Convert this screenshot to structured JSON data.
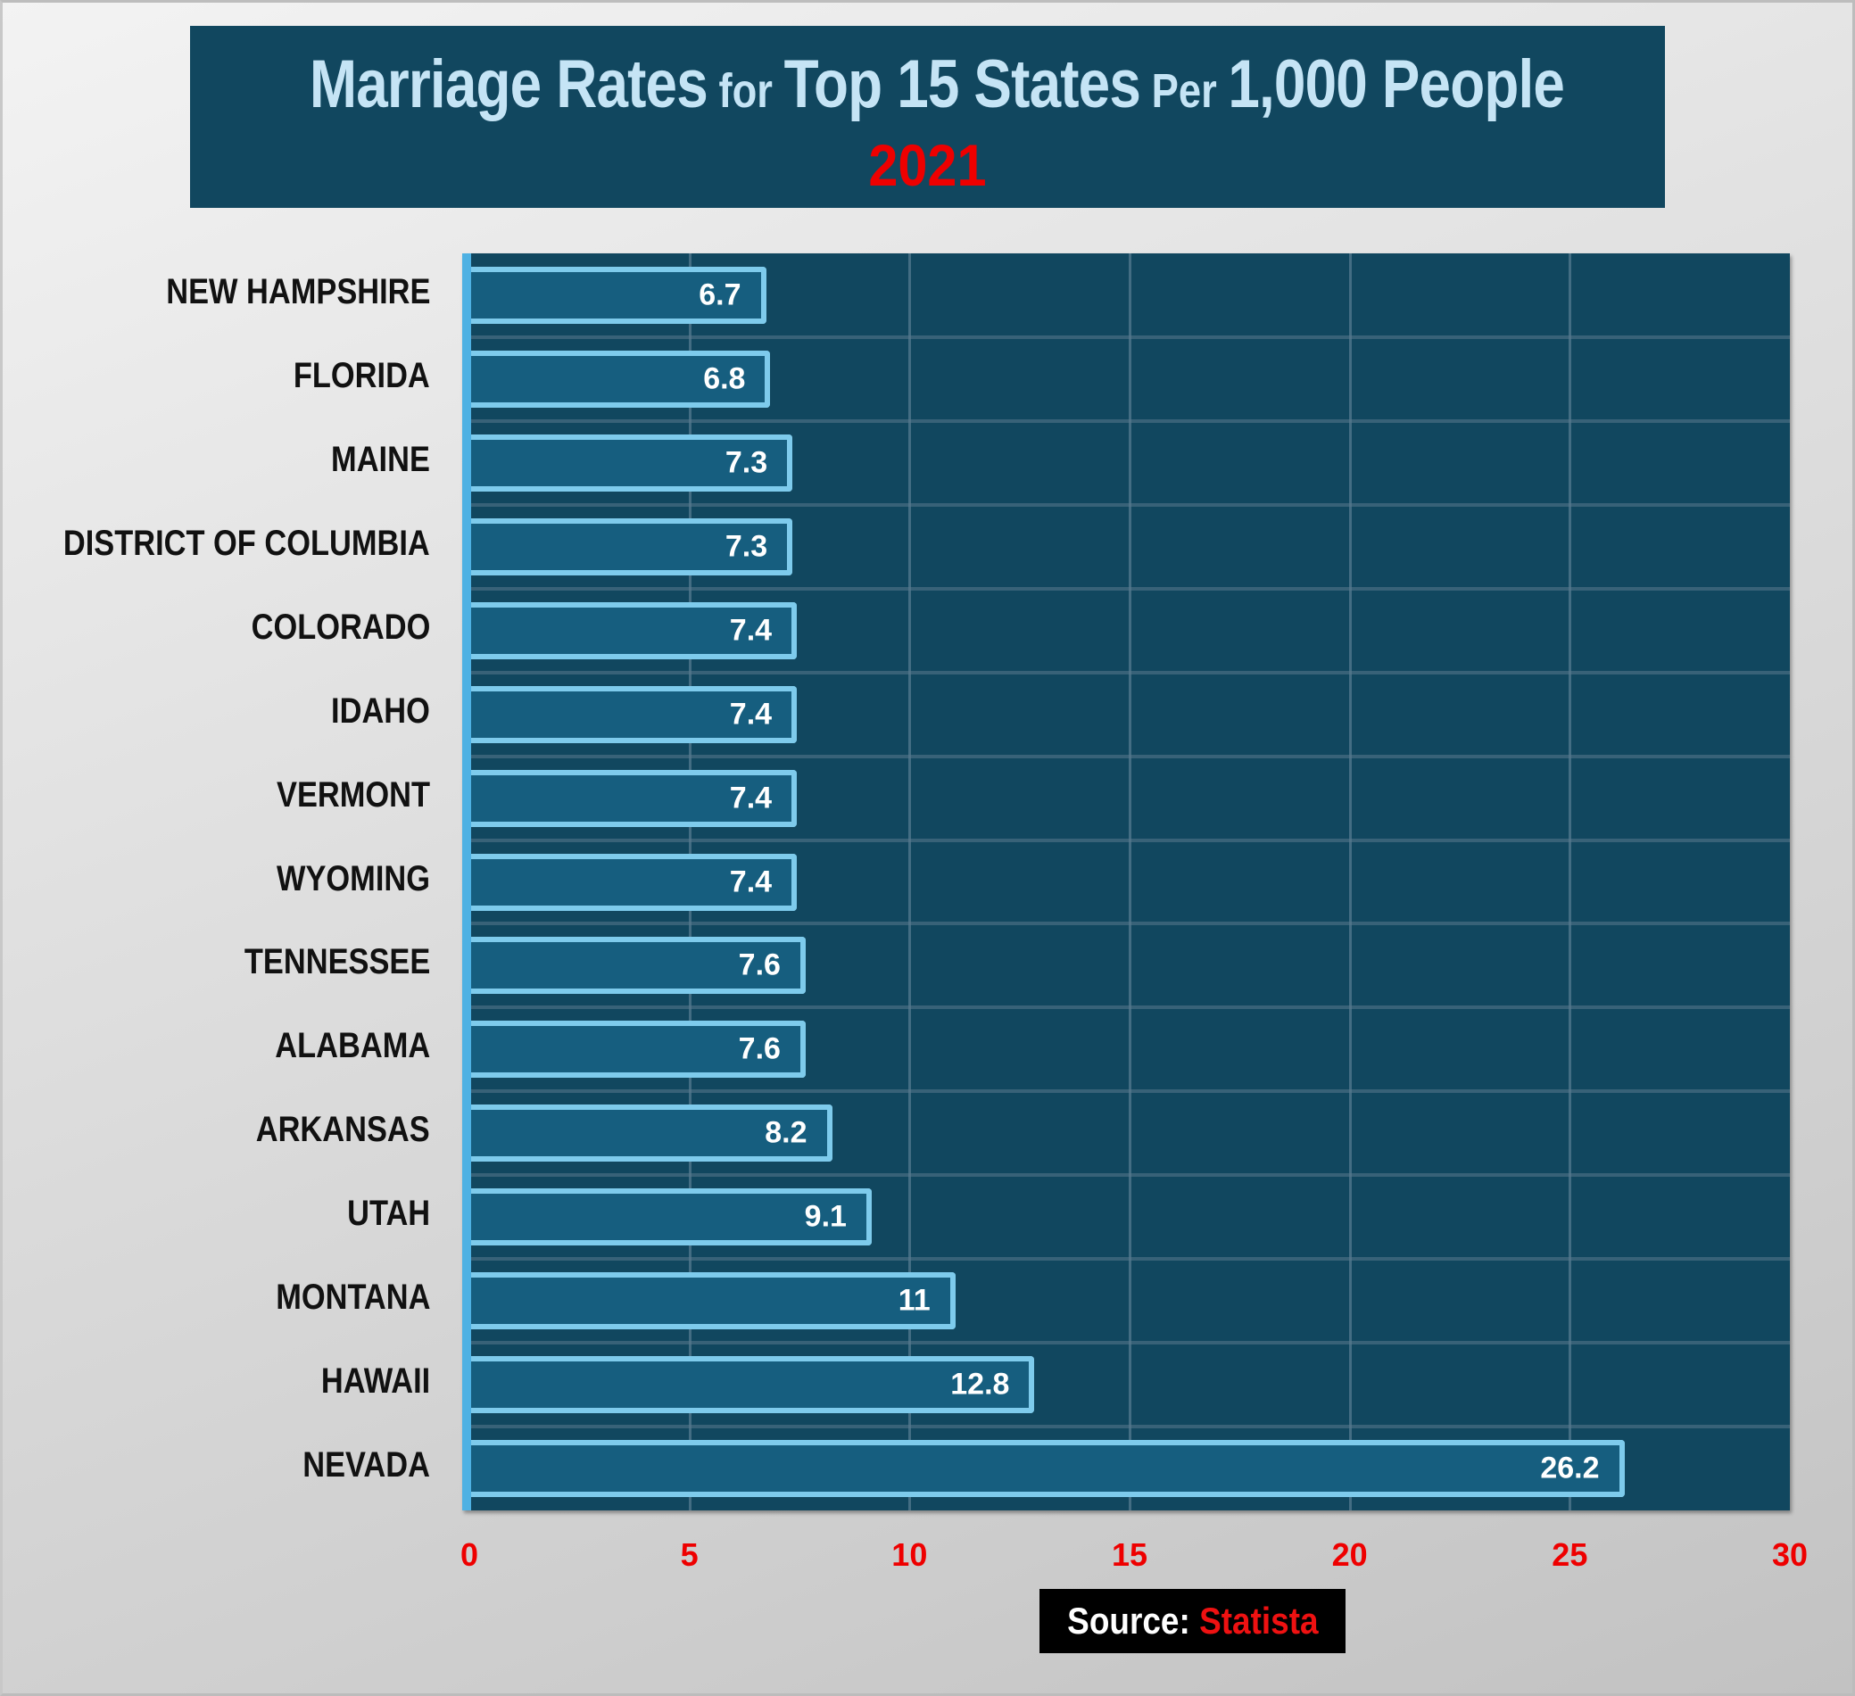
{
  "title": {
    "parts": [
      {
        "text": "Marriage Rates",
        "size": "big"
      },
      {
        "text": " for ",
        "size": "small"
      },
      {
        "text": "Top 15 States",
        "size": "big"
      },
      {
        "text": " Per ",
        "size": "small"
      },
      {
        "text": "1,000 People",
        "size": "big"
      }
    ],
    "year": "2021"
  },
  "colors": {
    "title_bg": "#11475f",
    "title_text": "#c5e4f5",
    "year_text": "#ee0000",
    "plot_bg": "#11475f",
    "bar_fill": "#165e7f",
    "bar_border": "#7ecbec",
    "axis_line": "#4eb1e3",
    "tick_labels": "#ee0000"
  },
  "source": {
    "label": "Source:",
    "name": "Statista"
  },
  "chart_data": {
    "type": "bar",
    "orientation": "horizontal",
    "title": "Marriage Rates for Top 15 States Per 1,000 People",
    "subtitle": "2021",
    "xlabel": "",
    "ylabel": "",
    "xlim": [
      0,
      30
    ],
    "x_ticks": [
      "0",
      "5",
      "10",
      "15",
      "20",
      "25",
      "30"
    ],
    "grid": true,
    "legend": null,
    "categories": [
      "NEW HAMPSHIRE",
      "FLORIDA",
      "MAINE",
      "DISTRICT OF COLUMBIA",
      "COLORADO",
      "IDAHO",
      "VERMONT",
      "WYOMING",
      "TENNESSEE",
      "ALABAMA",
      "ARKANSAS",
      "UTAH",
      "MONTANA",
      "HAWAII",
      "NEVADA"
    ],
    "values": [
      6.7,
      6.8,
      7.3,
      7.3,
      7.4,
      7.4,
      7.4,
      7.4,
      7.6,
      7.6,
      8.2,
      9.1,
      11,
      12.8,
      26.2
    ],
    "value_labels": [
      "6.7",
      "6.8",
      "7.3",
      "7.3",
      "7.4",
      "7.4",
      "7.4",
      "7.4",
      "7.6",
      "7.6",
      "8.2",
      "9.1",
      "11",
      "12.8",
      "26.2"
    ],
    "annotation": "Source: Statista"
  }
}
